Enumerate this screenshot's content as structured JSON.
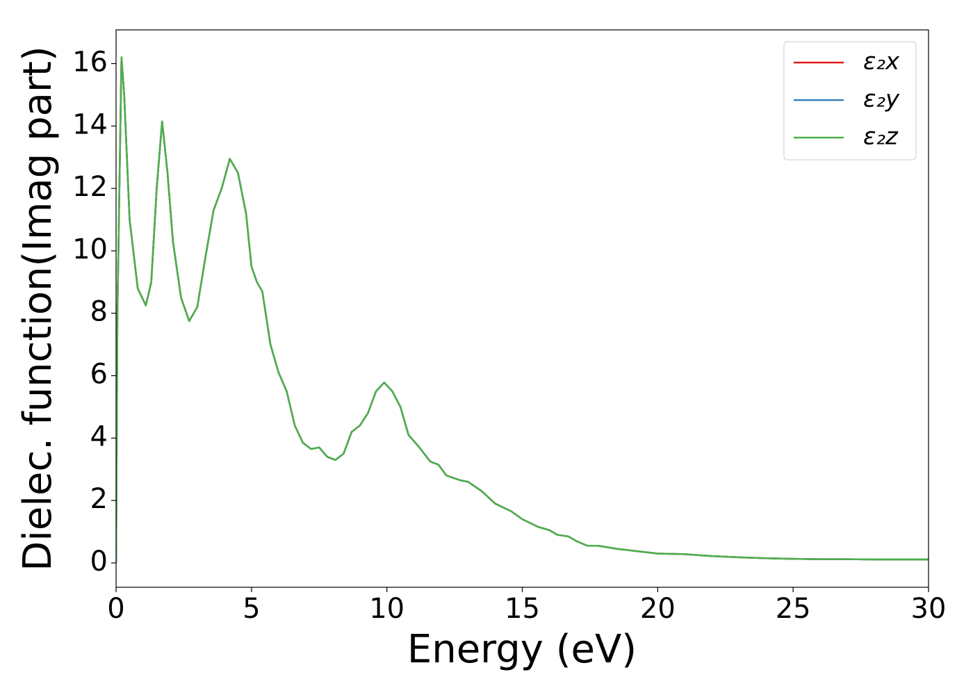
{
  "chart_data": {
    "type": "line",
    "xlabel": "Energy (eV)",
    "ylabel": "Dielec. function(Imag part)",
    "x": [
      0,
      0.05,
      0.2,
      0.3,
      0.5,
      0.8,
      1.1,
      1.3,
      1.5,
      1.7,
      1.9,
      2.1,
      2.4,
      2.7,
      3.0,
      3.3,
      3.6,
      3.9,
      4.2,
      4.5,
      4.8,
      5.0,
      5.2,
      5.4,
      5.7,
      6.0,
      6.3,
      6.6,
      6.9,
      7.2,
      7.5,
      7.8,
      8.1,
      8.4,
      8.7,
      9.0,
      9.3,
      9.6,
      9.9,
      10.2,
      10.5,
      10.8,
      11.2,
      11.6,
      11.9,
      12.2,
      12.7,
      13.0,
      13.5,
      14.0,
      14.6,
      15.0,
      15.6,
      16.0,
      16.3,
      16.7,
      17.0,
      17.4,
      17.8,
      18.5,
      19.5,
      20.0,
      21,
      22,
      23,
      24,
      25,
      26,
      27,
      28,
      29,
      30
    ],
    "series": [
      {
        "name": "ε₂x",
        "color": "#e41a1c",
        "values": [
          0,
          8,
          16.2,
          15,
          11,
          8.8,
          8.25,
          9,
          12,
          14.15,
          12.5,
          10.3,
          8.5,
          7.75,
          8.2,
          9.8,
          11.3,
          12,
          12.95,
          12.5,
          11.2,
          9.5,
          9.0,
          8.7,
          7.0,
          6.1,
          5.5,
          4.4,
          3.85,
          3.65,
          3.7,
          3.4,
          3.3,
          3.5,
          4.2,
          4.4,
          4.8,
          5.5,
          5.78,
          5.5,
          5.0,
          4.1,
          3.7,
          3.25,
          3.15,
          2.8,
          2.65,
          2.6,
          2.3,
          1.9,
          1.65,
          1.4,
          1.15,
          1.05,
          0.9,
          0.85,
          0.7,
          0.55,
          0.55,
          0.45,
          0.35,
          0.3,
          0.28,
          0.22,
          0.18,
          0.15,
          0.13,
          0.12,
          0.12,
          0.11,
          0.11,
          0.11
        ]
      },
      {
        "name": "ε₂y",
        "color": "#377eb8",
        "values": [
          0,
          8,
          16.2,
          15,
          11,
          8.8,
          8.25,
          9,
          12,
          14.15,
          12.5,
          10.3,
          8.5,
          7.75,
          8.2,
          9.8,
          11.3,
          12,
          12.95,
          12.5,
          11.2,
          9.5,
          9.0,
          8.7,
          7.0,
          6.1,
          5.5,
          4.4,
          3.85,
          3.65,
          3.7,
          3.4,
          3.3,
          3.5,
          4.2,
          4.4,
          4.8,
          5.5,
          5.78,
          5.5,
          5.0,
          4.1,
          3.7,
          3.25,
          3.15,
          2.8,
          2.65,
          2.6,
          2.3,
          1.9,
          1.65,
          1.4,
          1.15,
          1.05,
          0.9,
          0.85,
          0.7,
          0.55,
          0.55,
          0.45,
          0.35,
          0.3,
          0.28,
          0.22,
          0.18,
          0.15,
          0.13,
          0.12,
          0.12,
          0.11,
          0.11,
          0.11
        ]
      },
      {
        "name": "ε₂z",
        "color": "#4daf4a",
        "values": [
          0,
          8,
          16.2,
          15,
          11,
          8.8,
          8.25,
          9,
          12,
          14.15,
          12.5,
          10.3,
          8.5,
          7.75,
          8.2,
          9.8,
          11.3,
          12,
          12.95,
          12.5,
          11.2,
          9.5,
          9.0,
          8.7,
          7.0,
          6.1,
          5.5,
          4.4,
          3.85,
          3.65,
          3.7,
          3.4,
          3.3,
          3.5,
          4.2,
          4.4,
          4.8,
          5.5,
          5.78,
          5.5,
          5.0,
          4.1,
          3.7,
          3.25,
          3.15,
          2.8,
          2.65,
          2.6,
          2.3,
          1.9,
          1.65,
          1.4,
          1.15,
          1.05,
          0.9,
          0.85,
          0.7,
          0.55,
          0.55,
          0.45,
          0.35,
          0.3,
          0.28,
          0.22,
          0.18,
          0.15,
          0.13,
          0.12,
          0.12,
          0.11,
          0.11,
          0.11
        ]
      }
    ],
    "xlim": [
      0,
      30
    ],
    "xticks": [
      0,
      5,
      10,
      15,
      20,
      25,
      30
    ],
    "ylim": [
      -0.78,
      17.08
    ],
    "yticks": [
      0,
      2,
      4,
      6,
      8,
      10,
      12,
      14,
      16
    ],
    "grid": false,
    "legend": "upper right"
  }
}
